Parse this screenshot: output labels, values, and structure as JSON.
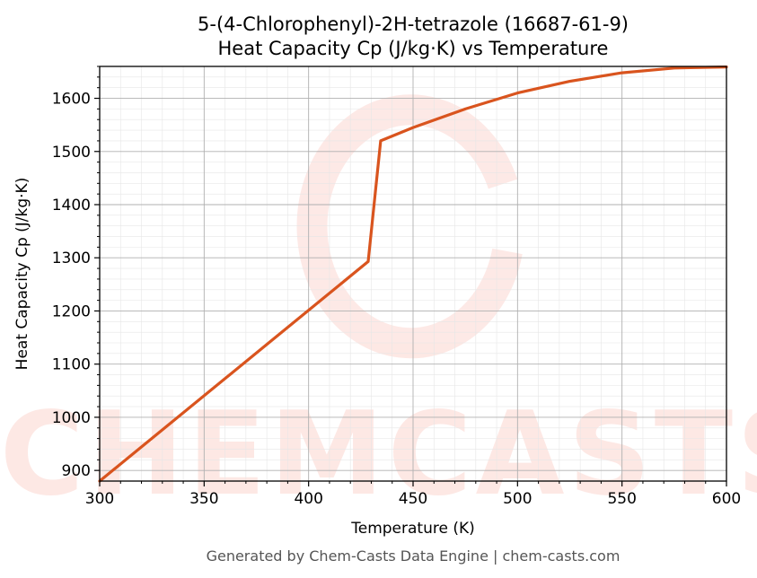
{
  "chart_data": {
    "type": "line",
    "title": [
      "5-(4-Chlorophenyl)-2H-tetrazole (16687-61-9)",
      "Heat Capacity Cp (J/kg·K) vs Temperature"
    ],
    "xlabel": "Temperature (K)",
    "ylabel": "Heat Capacity Cp (J/kg·K)",
    "xlim": [
      300,
      600
    ],
    "ylim": [
      880,
      1660
    ],
    "xticks": [
      300,
      350,
      400,
      450,
      500,
      550,
      600
    ],
    "yticks": [
      900,
      1000,
      1100,
      1200,
      1300,
      1400,
      1500,
      1600
    ],
    "grid": true,
    "series": [
      {
        "color": "#d9541e",
        "x": [
          300,
          428.5,
          434.5,
          450,
          475,
          500,
          525,
          550,
          575,
          600
        ],
        "y": [
          880,
          1293,
          1520,
          1545,
          1580,
          1610,
          1632,
          1648,
          1657,
          1659
        ]
      }
    ]
  },
  "watermark": "CHEMCASTS",
  "footer": "Generated by Chem-Casts Data Engine | chem-casts.com"
}
